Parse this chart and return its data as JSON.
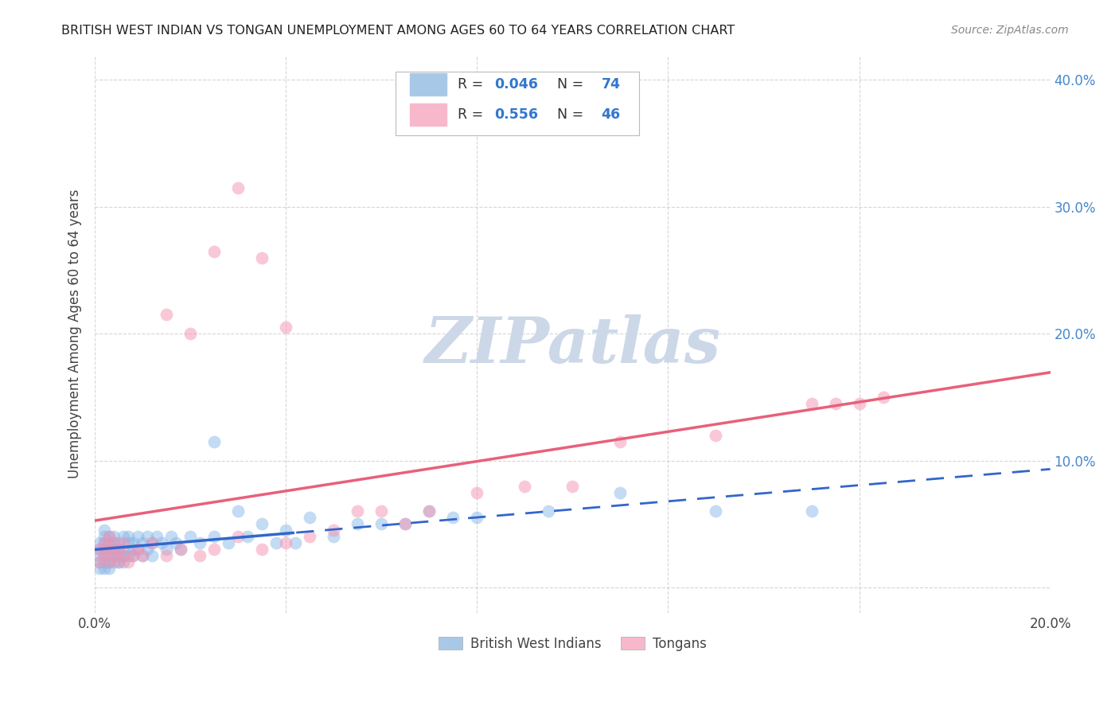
{
  "title": "BRITISH WEST INDIAN VS TONGAN UNEMPLOYMENT AMONG AGES 60 TO 64 YEARS CORRELATION CHART",
  "source": "Source: ZipAtlas.com",
  "ylabel": "Unemployment Among Ages 60 to 64 years",
  "xlim": [
    0.0,
    0.2
  ],
  "ylim": [
    -0.02,
    0.42
  ],
  "R_bwi": 0.046,
  "N_bwi": 74,
  "R_tongan": 0.556,
  "N_tongan": 46,
  "bwi_scatter_color": "#89b8e8",
  "tongan_scatter_color": "#f592b0",
  "bwi_line_color": "#3366cc",
  "tongan_line_color": "#e8607a",
  "watermark": "ZIPatlas",
  "watermark_color": "#ccd8e8",
  "background_color": "#ffffff",
  "legend_patch_bwi": "#a8c8e8",
  "legend_patch_tongan": "#f8b8cc",
  "bwi_x": [
    0.001,
    0.001,
    0.001,
    0.001,
    0.001,
    0.002,
    0.002,
    0.002,
    0.002,
    0.002,
    0.002,
    0.002,
    0.003,
    0.003,
    0.003,
    0.003,
    0.003,
    0.003,
    0.004,
    0.004,
    0.004,
    0.004,
    0.004,
    0.005,
    0.005,
    0.005,
    0.005,
    0.006,
    0.006,
    0.006,
    0.006,
    0.007,
    0.007,
    0.007,
    0.008,
    0.008,
    0.008,
    0.009,
    0.009,
    0.01,
    0.01,
    0.011,
    0.011,
    0.012,
    0.012,
    0.013,
    0.014,
    0.015,
    0.016,
    0.017,
    0.018,
    0.02,
    0.022,
    0.025,
    0.028,
    0.032,
    0.038,
    0.042,
    0.05,
    0.06,
    0.07,
    0.08,
    0.095,
    0.11,
    0.13,
    0.15,
    0.025,
    0.03,
    0.035,
    0.04,
    0.045,
    0.055,
    0.065,
    0.075
  ],
  "bwi_y": [
    0.03,
    0.025,
    0.02,
    0.035,
    0.015,
    0.04,
    0.025,
    0.035,
    0.02,
    0.03,
    0.015,
    0.045,
    0.03,
    0.025,
    0.035,
    0.02,
    0.04,
    0.015,
    0.03,
    0.025,
    0.035,
    0.02,
    0.04,
    0.03,
    0.025,
    0.035,
    0.02,
    0.04,
    0.025,
    0.03,
    0.02,
    0.035,
    0.025,
    0.04,
    0.03,
    0.025,
    0.035,
    0.04,
    0.03,
    0.035,
    0.025,
    0.04,
    0.03,
    0.035,
    0.025,
    0.04,
    0.035,
    0.03,
    0.04,
    0.035,
    0.03,
    0.04,
    0.035,
    0.04,
    0.035,
    0.04,
    0.035,
    0.035,
    0.04,
    0.05,
    0.06,
    0.055,
    0.06,
    0.075,
    0.06,
    0.06,
    0.115,
    0.06,
    0.05,
    0.045,
    0.055,
    0.05,
    0.05,
    0.055
  ],
  "tongan_x": [
    0.001,
    0.001,
    0.002,
    0.002,
    0.003,
    0.003,
    0.003,
    0.004,
    0.004,
    0.005,
    0.005,
    0.006,
    0.006,
    0.007,
    0.008,
    0.009,
    0.01,
    0.012,
    0.015,
    0.018,
    0.022,
    0.025,
    0.03,
    0.035,
    0.04,
    0.045,
    0.05,
    0.055,
    0.06,
    0.065,
    0.07,
    0.08,
    0.09,
    0.1,
    0.11,
    0.13,
    0.15,
    0.155,
    0.16,
    0.165,
    0.015,
    0.02,
    0.025,
    0.03,
    0.035,
    0.04
  ],
  "tongan_y": [
    0.02,
    0.03,
    0.025,
    0.035,
    0.02,
    0.03,
    0.04,
    0.025,
    0.035,
    0.02,
    0.03,
    0.025,
    0.035,
    0.02,
    0.025,
    0.03,
    0.025,
    0.035,
    0.025,
    0.03,
    0.025,
    0.03,
    0.04,
    0.03,
    0.035,
    0.04,
    0.045,
    0.06,
    0.06,
    0.05,
    0.06,
    0.075,
    0.08,
    0.08,
    0.115,
    0.12,
    0.145,
    0.145,
    0.145,
    0.15,
    0.215,
    0.2,
    0.265,
    0.315,
    0.26,
    0.205
  ]
}
